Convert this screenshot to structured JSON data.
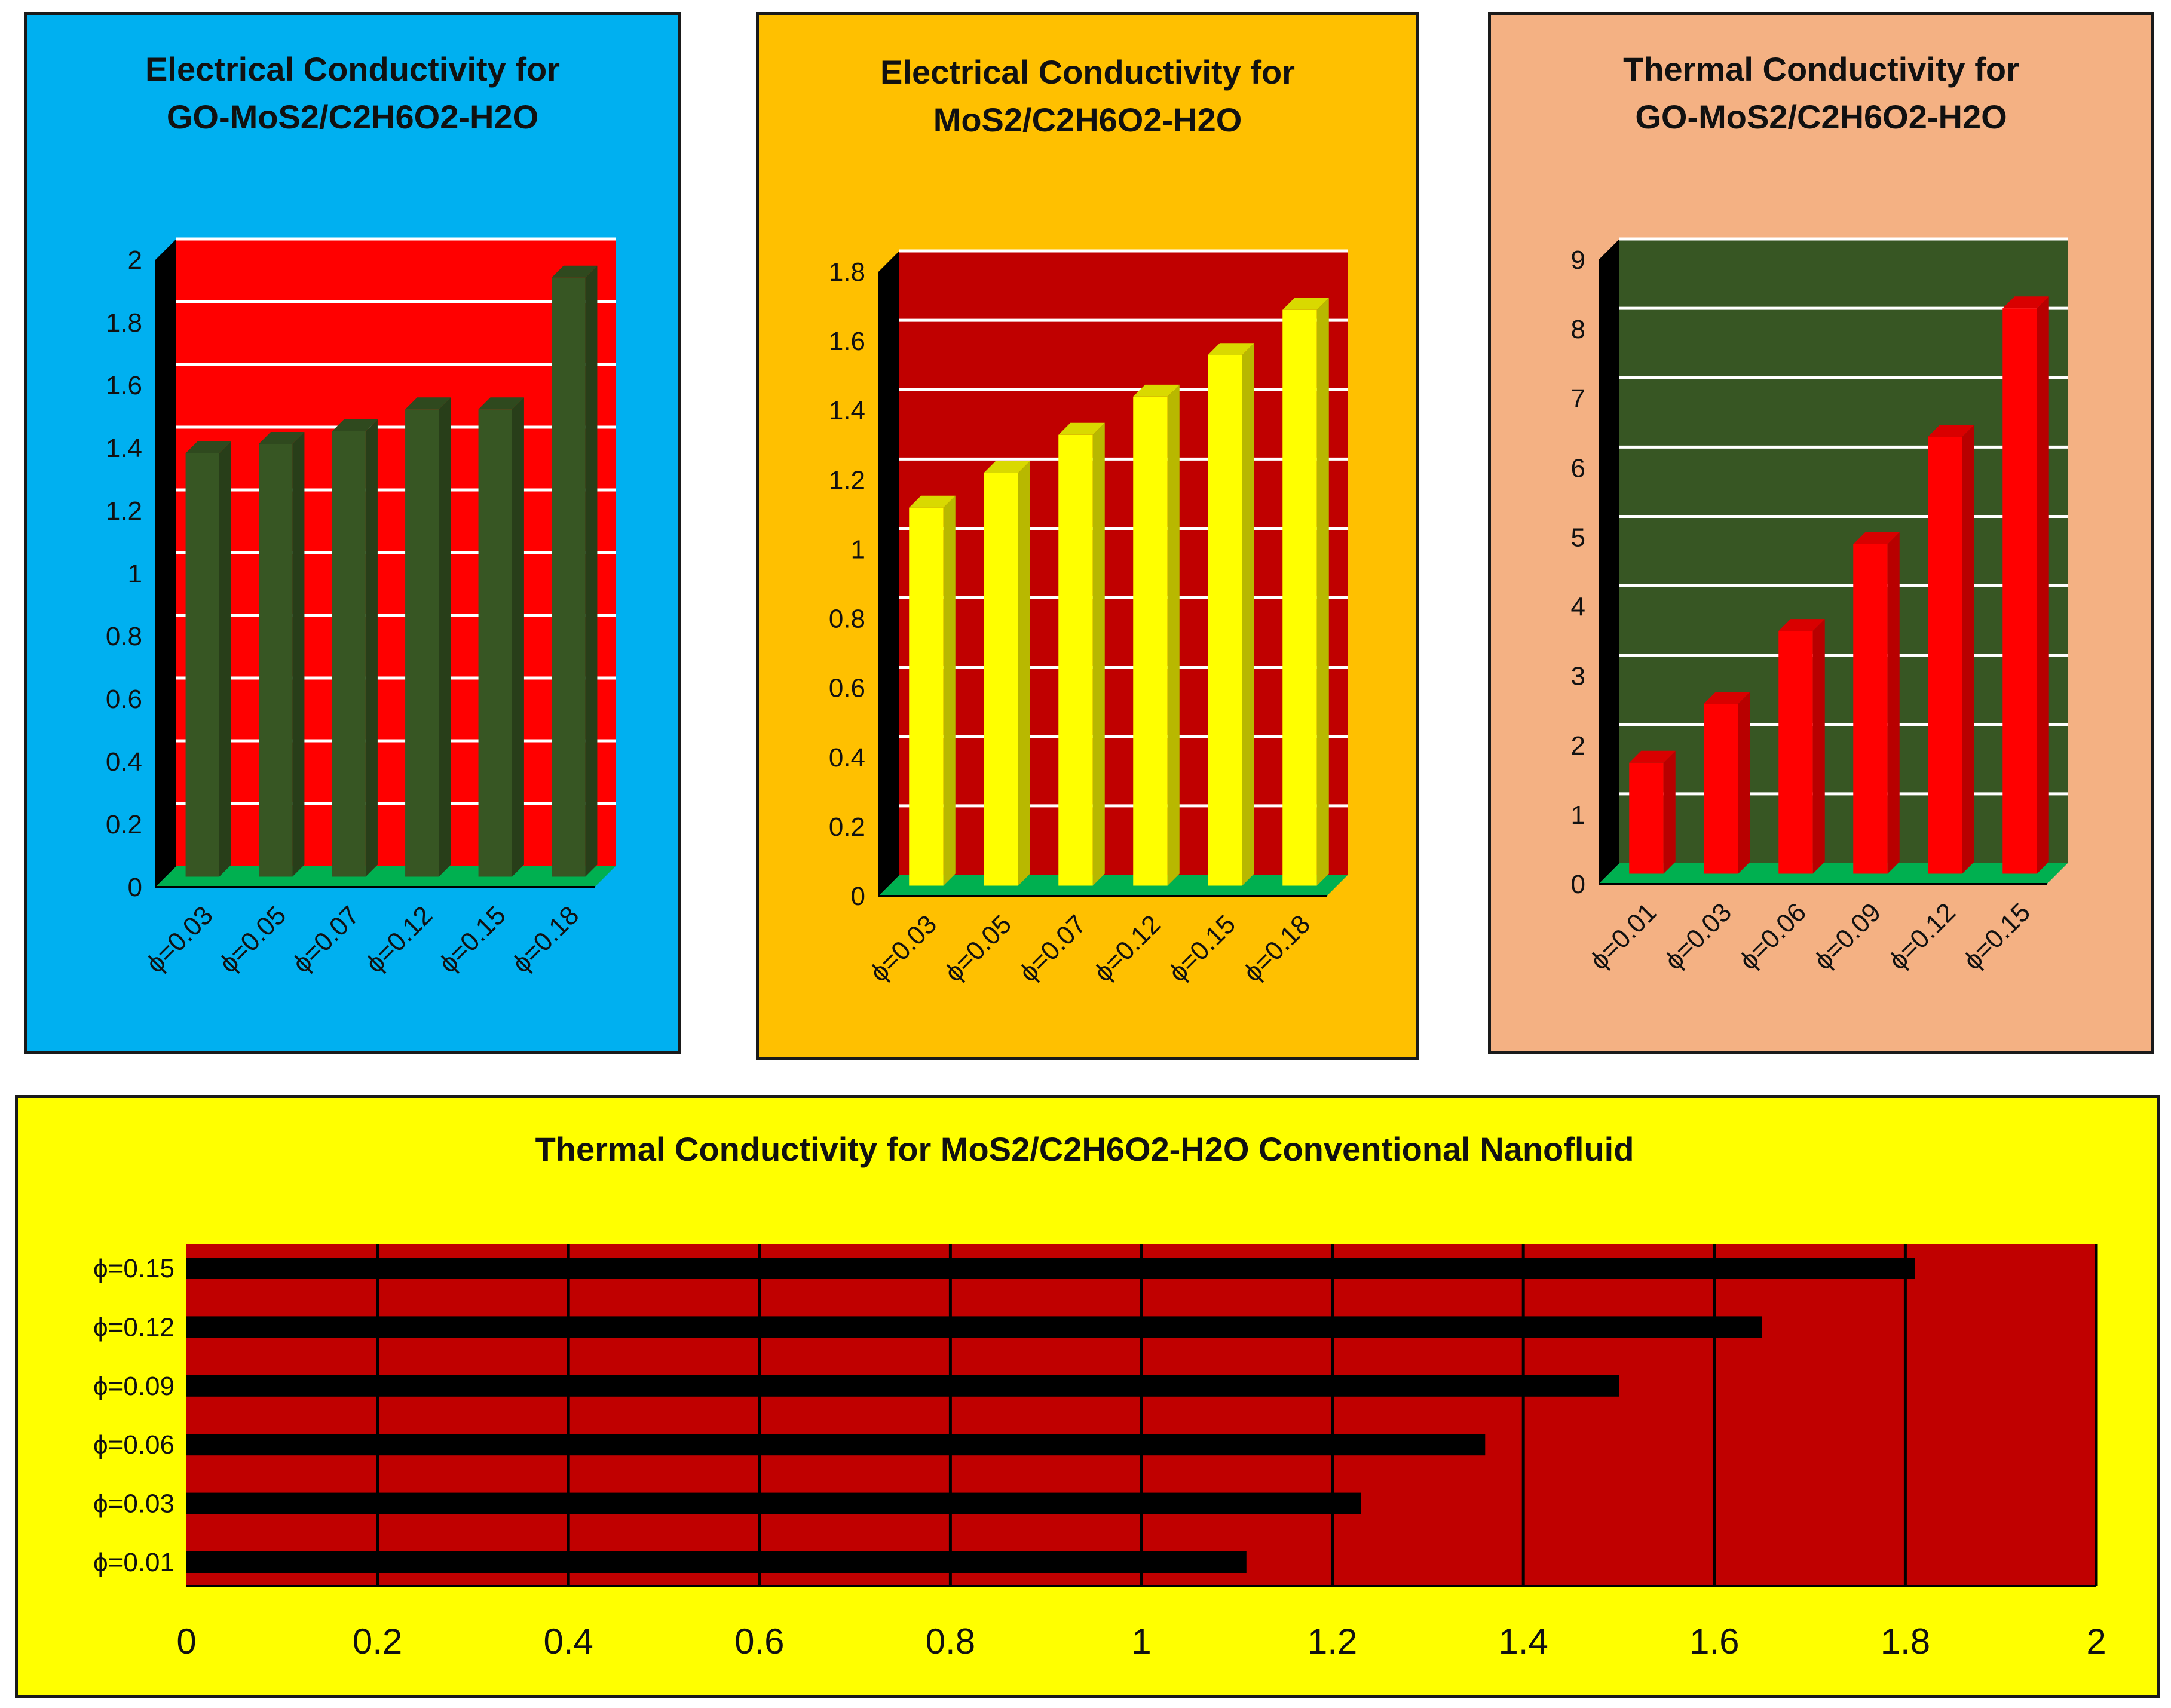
{
  "chart_data": [
    {
      "type": "bar",
      "title": [
        "Electrical Conductivity for",
        "GO-MoS2/C2H6O2-H2O"
      ],
      "categories": [
        "ϕ=0.03",
        "ϕ=0.05",
        "ϕ=0.07",
        "ϕ=0.12",
        "ϕ=0.15",
        "ϕ=0.18"
      ],
      "values": [
        1.35,
        1.38,
        1.42,
        1.49,
        1.49,
        1.91
      ],
      "ylim": [
        0,
        2
      ],
      "yticks": [
        "0",
        "0.2",
        "0.4",
        "0.6",
        "0.8",
        "1",
        "1.2",
        "1.4",
        "1.6",
        "1.8",
        "2"
      ],
      "grid": true,
      "colors": {
        "panel": "#00b0f0",
        "plot": "#ff0000",
        "bar": "#375623",
        "floor": "#00b050"
      }
    },
    {
      "type": "bar",
      "title": [
        "Electrical Conductivity for",
        "MoS2/C2H6O2-H2O"
      ],
      "categories": [
        "ϕ=0.03",
        "ϕ=0.05",
        "ϕ=0.07",
        "ϕ=0.12",
        "ϕ=0.15",
        "ϕ=0.18"
      ],
      "values": [
        1.09,
        1.19,
        1.3,
        1.41,
        1.53,
        1.66
      ],
      "ylim": [
        0,
        1.8
      ],
      "yticks": [
        "0",
        "0.2",
        "0.4",
        "0.6",
        "0.8",
        "1",
        "1.2",
        "1.4",
        "1.6",
        "1.8"
      ],
      "grid": true,
      "colors": {
        "panel": "#ffc000",
        "plot": "#c00000",
        "bar": "#ffff00",
        "floor": "#00b050"
      }
    },
    {
      "type": "bar",
      "title": [
        "Thermal Conductivity for",
        "GO-MoS2/C2H6O2-H2O"
      ],
      "categories": [
        "ϕ=0.01",
        "ϕ=0.03",
        "ϕ=0.06",
        "ϕ=0.09",
        "ϕ=0.12",
        "ϕ=0.15"
      ],
      "values": [
        1.6,
        2.45,
        3.5,
        4.75,
        6.3,
        8.15
      ],
      "ylim": [
        0,
        9
      ],
      "yticks": [
        "0",
        "1",
        "2",
        "3",
        "4",
        "5",
        "6",
        "7",
        "8",
        "9"
      ],
      "grid": true,
      "colors": {
        "panel": "#f4b183",
        "plot": "#375623",
        "bar": "#ff0000",
        "floor": "#00b050"
      }
    },
    {
      "type": "hbar",
      "title": [
        "Thermal Conductivity for MoS2/C2H6O2-H2O Conventional Nanofluid"
      ],
      "categories": [
        "ϕ=0.15",
        "ϕ=0.12",
        "ϕ=0.09",
        "ϕ=0.06",
        "ϕ=0.03",
        "ϕ=0.01"
      ],
      "values": [
        1.81,
        1.65,
        1.5,
        1.36,
        1.23,
        1.11
      ],
      "xlim": [
        0,
        2
      ],
      "xticks": [
        "0",
        "0.2",
        "0.4",
        "0.6",
        "0.8",
        "1",
        "1.2",
        "1.4",
        "1.6",
        "1.8",
        "2"
      ],
      "grid": true,
      "colors": {
        "panel": "#ffff00",
        "plot": "#c00000",
        "bar": "#000000"
      }
    }
  ]
}
